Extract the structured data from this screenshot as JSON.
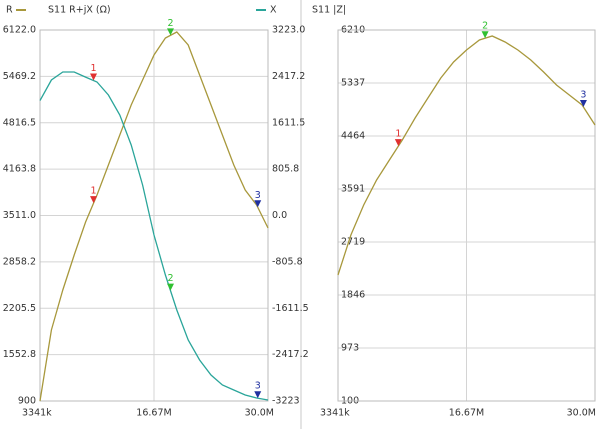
{
  "chart_data": [
    {
      "type": "line",
      "title": "S11 R+jX (Ω)",
      "x": [
        3341000,
        4673950,
        6006900,
        7339850,
        8672800,
        10005750,
        11338700,
        12671650,
        14004600,
        15337550,
        16670500,
        18003450,
        19336400,
        20669350,
        22002300,
        23335250,
        24668200,
        26001150,
        27334100,
        28667050,
        30000000
      ],
      "xlim": [
        3341000,
        30000000
      ],
      "xticks": [
        {
          "value": 3341000,
          "label": "3341k"
        },
        {
          "value": 16670500,
          "label": "16.67M"
        },
        {
          "value": 30000000,
          "label": "30.0M"
        }
      ],
      "ylim": [
        900,
        6122
      ],
      "yticks": [
        {
          "value": 6122,
          "label": "6122.0"
        },
        5469.2,
        4816.5,
        4163.8,
        {
          "value": 3511,
          "label": "3511.0"
        },
        2858.2,
        2205.5,
        1552.8,
        900
      ],
      "y2lim": [
        -3223,
        3223
      ],
      "y2ticks": [
        {
          "value": 3223,
          "label": "3223.0"
        },
        2417.2,
        1611.5,
        805.8,
        {
          "value": 0,
          "label": "0.0"
        },
        -805.8,
        -1611.5,
        -2417.2,
        -3223
      ],
      "grid": true,
      "series": [
        {
          "name": "R",
          "color": "#a8983c",
          "values": [
            900,
            1900,
            2462,
            2955,
            3420,
            3800,
            4222,
            4644,
            5066,
            5418,
            5770,
            6009,
            6094,
            5911,
            5489,
            5066,
            4644,
            4222,
            3870,
            3659,
            3335
          ]
        },
        {
          "name": "X",
          "color": "#2aa59a",
          "axis": "y2",
          "values": [
            1997,
            2354,
            2493,
            2493,
            2405,
            2320,
            2094,
            1746,
            1225,
            530,
            -339,
            -1034,
            -1642,
            -2163,
            -2511,
            -2771,
            -2945,
            -3032,
            -3119,
            -3171,
            -3206
          ]
        }
      ],
      "markers": [
        {
          "label": "1",
          "x": 9600000,
          "color": "#e03030"
        },
        {
          "label": "2",
          "x": 18600000,
          "color": "#30c030"
        },
        {
          "label": "3",
          "x": 28800000,
          "color": "#2030a0"
        }
      ]
    },
    {
      "type": "line",
      "title": "S11 |Z|",
      "x": [
        3341000,
        4673950,
        6006900,
        7339850,
        8672800,
        10005750,
        11338700,
        12671650,
        14004600,
        15337550,
        16670500,
        18003450,
        19336400,
        20669350,
        22002300,
        23335250,
        24668200,
        26001150,
        27334100,
        28667050,
        30000000
      ],
      "xlim": [
        3341000,
        30000000
      ],
      "xticks": [
        {
          "value": 3341000,
          "label": "3341k"
        },
        {
          "value": 16670500,
          "label": "16.67M"
        },
        {
          "value": 30000000,
          "label": "30.0M"
        }
      ],
      "ylim": [
        100,
        6210
      ],
      "yticks": [
        6210,
        5337,
        4464,
        3591,
        2719,
        1846,
        973,
        100
      ],
      "grid": true,
      "series": [
        {
          "color": "#a8983c",
          "values": [
            2175,
            2834,
            3328,
            3740,
            4069,
            4398,
            4761,
            5090,
            5419,
            5683,
            5881,
            6045,
            6111,
            6012,
            5881,
            5716,
            5518,
            5304,
            5139,
            4975,
            4645
          ]
        }
      ],
      "markers": [
        {
          "label": "1",
          "x": 9600000,
          "color": "#e03030"
        },
        {
          "label": "2",
          "x": 18600000,
          "color": "#30c030"
        },
        {
          "label": "3",
          "x": 28800000,
          "color": "#2030a0"
        }
      ]
    }
  ]
}
